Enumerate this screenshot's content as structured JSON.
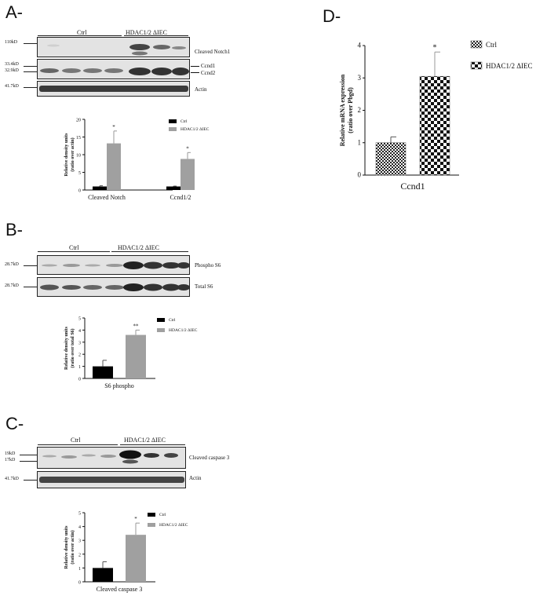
{
  "panels": {
    "A": {
      "letter": "A-",
      "groups": [
        "Ctrl",
        "HDAC1/2 ΔIEC"
      ],
      "blots": [
        {
          "markers": [
            "110kD"
          ],
          "label": "Cleaved Notch1"
        },
        {
          "markers": [
            "33.4kD",
            "32.9kD"
          ],
          "label": "",
          "arrows": [
            "Ccnd1",
            "Ccnd2"
          ]
        },
        {
          "markers": [
            "41.7kD"
          ],
          "label": "Actin"
        }
      ]
    },
    "B": {
      "letter": "B-",
      "groups": [
        "Ctrl",
        "HDAC1/2 ΔIEC"
      ],
      "blots": [
        {
          "markers": [
            "28.7kD"
          ],
          "label": "Phospho S6"
        },
        {
          "markers": [
            "28.7kD"
          ],
          "label": "Total S6"
        }
      ]
    },
    "C": {
      "letter": "C-",
      "groups": [
        "Ctrl",
        "HDAC1/2 ΔIEC"
      ],
      "blots": [
        {
          "markers": [
            "19kD",
            "17kD"
          ],
          "label": "Cleaved caspase 3"
        },
        {
          "markers": [
            "41.7kD"
          ],
          "label": "Actin"
        }
      ]
    },
    "D": {
      "letter": "D-"
    }
  },
  "chart_data": [
    {
      "id": "A",
      "type": "bar",
      "ylabel": "Relative density units (ratio over actin)",
      "ylim": [
        0,
        20
      ],
      "yticks": [
        "0",
        "5",
        "10",
        "15",
        "20"
      ],
      "categories": [
        "Cleaved Notch",
        "Ccnd1/2"
      ],
      "series": [
        {
          "name": "Ctrl",
          "color": "#000000",
          "values": [
            1,
            1
          ],
          "errors": [
            0.2,
            0.1
          ]
        },
        {
          "name": "HDAC1/2 ΔIEC",
          "color": "#a0a0a0",
          "values": [
            13.2,
            8.8
          ],
          "errors": [
            3.5,
            1.8
          ]
        }
      ],
      "significance": [
        "*",
        "*"
      ],
      "legend": "top-right"
    },
    {
      "id": "B",
      "type": "bar",
      "ylabel": "Relative density units (ratio over total S6)",
      "ylim": [
        0,
        5
      ],
      "yticks": [
        "0",
        "1",
        "2",
        "3",
        "4",
        "5"
      ],
      "categories": [
        "S6 phospho"
      ],
      "series": [
        {
          "name": "Ctrl",
          "color": "#000000",
          "values": [
            1.0
          ],
          "errors": [
            0.5
          ]
        },
        {
          "name": "HDAC1/2 ΔIEC",
          "color": "#a0a0a0",
          "values": [
            3.6
          ],
          "errors": [
            0.4
          ]
        }
      ],
      "significance": [
        "**"
      ],
      "legend": "top-right"
    },
    {
      "id": "C",
      "type": "bar",
      "ylabel": "Relative density units (ratio over actin)",
      "ylim": [
        0,
        5
      ],
      "yticks": [
        "0",
        "1",
        "2",
        "3",
        "4",
        "5"
      ],
      "categories": [
        "Cleaved caspase 3"
      ],
      "series": [
        {
          "name": "Ctrl",
          "color": "#000000",
          "values": [
            1.0
          ],
          "errors": [
            0.45
          ]
        },
        {
          "name": "HDAC1/2 ΔIEC",
          "color": "#a0a0a0",
          "values": [
            3.4
          ],
          "errors": [
            0.85
          ]
        }
      ],
      "significance": [
        "*"
      ],
      "legend": "top-right"
    },
    {
      "id": "D",
      "type": "bar",
      "ylabel": "Relative mRNA expression (ratio over Pbgd)",
      "ylim": [
        0,
        4
      ],
      "yticks": [
        "0",
        "1",
        "2",
        "3",
        "4"
      ],
      "categories": [
        "Ccnd1"
      ],
      "series": [
        {
          "name": "Ctrl",
          "pattern": "fine-check",
          "values": [
            1.0
          ],
          "errors": [
            0.18
          ]
        },
        {
          "name": "HDAC1/2 ΔIEC",
          "pattern": "coarse-check",
          "values": [
            3.05
          ],
          "errors": [
            0.75
          ]
        }
      ],
      "significance": [
        "*"
      ],
      "legend": "top-right"
    }
  ]
}
